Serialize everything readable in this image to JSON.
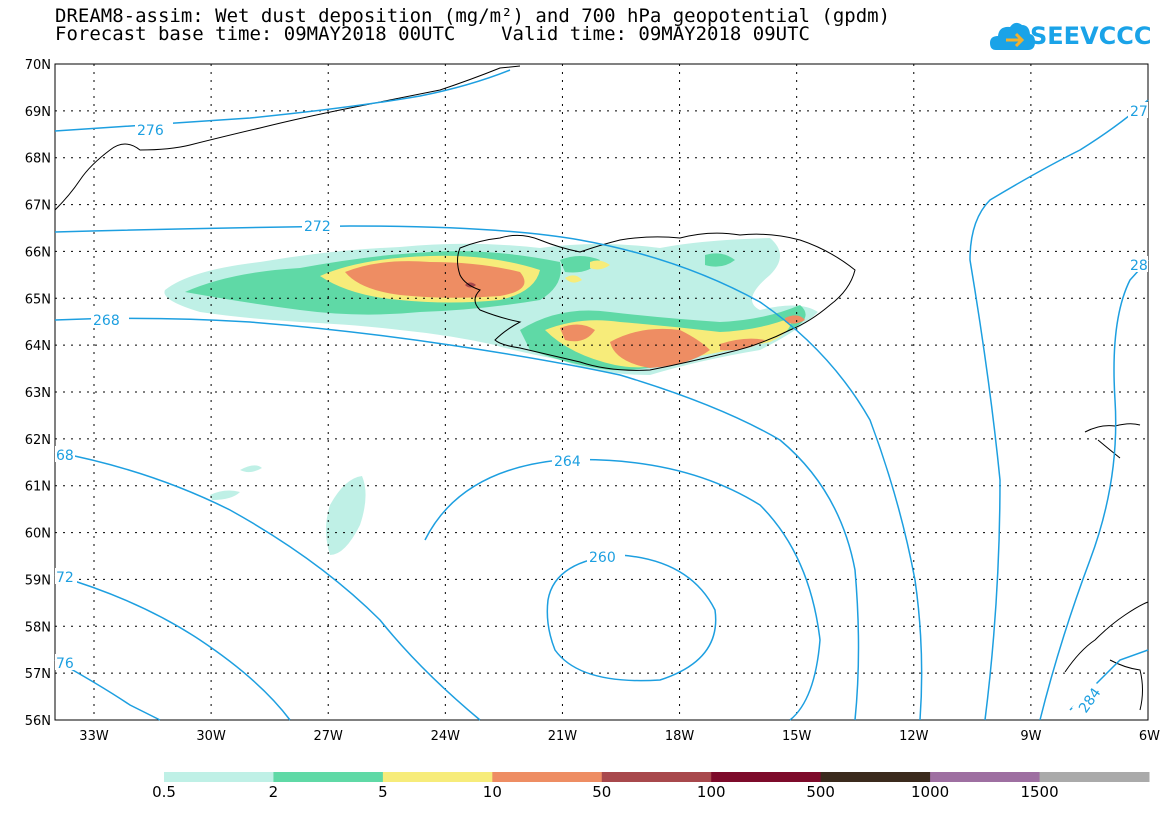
{
  "title": {
    "line1": "DREAM8-assim: Wet dust deposition (mg/m²) and 700 hPa geopotential (gpdm)",
    "line2": "Forecast base time: 09MAY2018 00UTC    Valid time: 09MAY2018 09UTC"
  },
  "logo": {
    "text": "SEEVCCC",
    "icon": "cloud-icon",
    "color": "#1aa3e8"
  },
  "map": {
    "lat_labels": [
      "70N",
      "69N",
      "68N",
      "67N",
      "66N",
      "65N",
      "64N",
      "63N",
      "62N",
      "61N",
      "60N",
      "59N",
      "58N",
      "57N",
      "56N"
    ],
    "lon_labels": [
      "33W",
      "30W",
      "27W",
      "24W",
      "21W",
      "18W",
      "15W",
      "12W",
      "9W",
      "6W"
    ],
    "contour_labels": [
      "276",
      "272",
      "268",
      "264",
      "260",
      "68",
      "72",
      "76",
      "284",
      "27",
      "28"
    ],
    "contour_color": "#1d9fe0"
  },
  "legend": {
    "colors": [
      "#bff0e6",
      "#5fd9a6",
      "#f7ec7a",
      "#ee8d63",
      "#a8484c",
      "#7d0a2a",
      "#3b2a1d",
      "#9e6fa1",
      "#aaaaaa"
    ],
    "labels": [
      "0.5",
      "2",
      "5",
      "10",
      "50",
      "100",
      "500",
      "1000",
      "1500"
    ]
  }
}
